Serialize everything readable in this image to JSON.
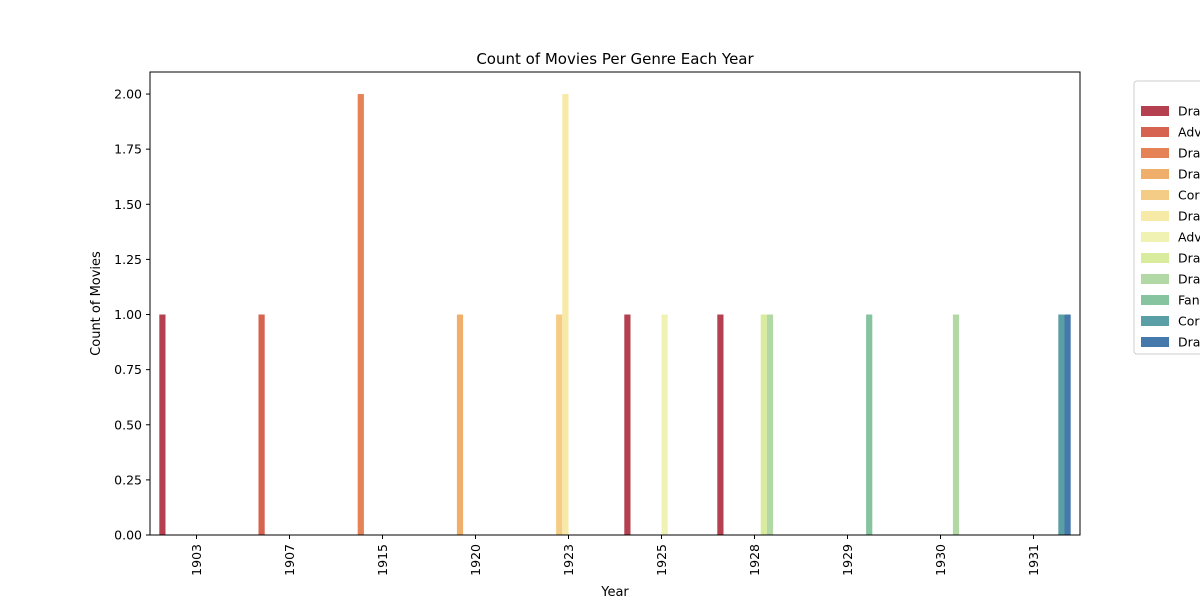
{
  "chart_data": {
    "type": "bar",
    "title": "Count of Movies Per Genre Each Year",
    "xlabel": "Year",
    "ylabel": "Count of Movies",
    "categories": [
      "1903",
      "1907",
      "1915",
      "1920",
      "1923",
      "1925",
      "1928",
      "1929",
      "1930",
      "1931"
    ],
    "ylim": [
      0,
      2.1
    ],
    "yticks": [
      "0.00",
      "0.25",
      "0.50",
      "0.75",
      "1.00",
      "1.25",
      "1.50",
      "1.75",
      "2.00"
    ],
    "grid": false,
    "legend_position": "right, outside plot (clipped)",
    "series": [
      {
        "name": "Dra",
        "color": "#b5404f",
        "values": [
          1,
          0,
          0,
          0,
          0,
          1,
          1,
          0,
          0,
          0
        ]
      },
      {
        "name": "Adv",
        "color": "#d5634f",
        "values": [
          0,
          1,
          0,
          0,
          0,
          0,
          0,
          0,
          0,
          0
        ]
      },
      {
        "name": "Dra",
        "color": "#e58256",
        "values": [
          0,
          0,
          2,
          0,
          0,
          0,
          0,
          0,
          0,
          0
        ]
      },
      {
        "name": "Dra",
        "color": "#efae6a",
        "values": [
          0,
          0,
          0,
          1,
          0,
          0,
          0,
          0,
          0,
          0
        ]
      },
      {
        "name": "Cor",
        "color": "#f5cc86",
        "values": [
          0,
          0,
          0,
          0,
          1,
          0,
          0,
          0,
          0,
          0
        ]
      },
      {
        "name": "Dra",
        "color": "#f7e9a6",
        "values": [
          0,
          0,
          0,
          0,
          2,
          0,
          0,
          0,
          0,
          0
        ]
      },
      {
        "name": "Adv",
        "color": "#f0f2b4",
        "values": [
          0,
          0,
          0,
          0,
          0,
          1,
          0,
          0,
          0,
          0
        ]
      },
      {
        "name": "Dra",
        "color": "#d9ec9e",
        "values": [
          0,
          0,
          0,
          0,
          0,
          0,
          1,
          0,
          0,
          0
        ]
      },
      {
        "name": "Dra",
        "color": "#b1d8a5",
        "values": [
          0,
          0,
          0,
          0,
          0,
          0,
          1,
          0,
          1,
          0
        ]
      },
      {
        "name": "Fan",
        "color": "#86c4a0",
        "values": [
          0,
          0,
          0,
          0,
          0,
          0,
          0,
          1,
          0,
          0
        ]
      },
      {
        "name": "Cor",
        "color": "#5a9ea6",
        "values": [
          0,
          0,
          0,
          0,
          0,
          0,
          0,
          0,
          0,
          1
        ]
      },
      {
        "name": "Dra",
        "color": "#4679ab",
        "values": [
          0,
          0,
          0,
          0,
          0,
          0,
          0,
          0,
          0,
          1
        ]
      }
    ]
  }
}
